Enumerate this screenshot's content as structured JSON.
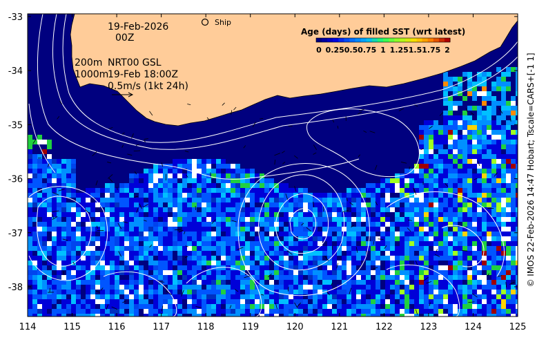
{
  "map": {
    "date_line1": "19-Feb-2026",
    "date_line2": "00Z",
    "contours_label": "200m",
    "contours_label2": "1000m",
    "product_label": "NRT00 GSL",
    "product_time": "19-Feb 18:00Z",
    "vector_scale_label": "0.5m/s (1kt 24h)",
    "ship_label": "Ship",
    "legend_title": "Age (days) of filled SST (wrt latest)",
    "credit": "© IMOS 22-Feb-2026 14:47 Hobart; Tscale=CARS+[-1 1]"
  },
  "legend": {
    "ticks": [
      "0",
      "0.25",
      "0.5",
      "0.75",
      "1",
      "1.25",
      "1.5",
      "1.75",
      "2"
    ],
    "colors": [
      "#00007f",
      "#0000e0",
      "#0066ff",
      "#00b4ff",
      "#27ff5c",
      "#a0ff20",
      "#ffdd00",
      "#ff7a00",
      "#b00000"
    ]
  },
  "axes": {
    "x_ticks": [
      "114",
      "115",
      "116",
      "117",
      "118",
      "119",
      "120",
      "121",
      "122",
      "123",
      "124",
      "125"
    ],
    "y_ticks": [
      "-33",
      "-34",
      "-35",
      "-36",
      "-37",
      "-38"
    ],
    "xlim": [
      114,
      125
    ],
    "ylim": [
      -38.55,
      -32.95
    ]
  },
  "colors": {
    "land": "#ffcc99",
    "ocean_fresh": "#00007f",
    "contour": "#ffffff"
  }
}
